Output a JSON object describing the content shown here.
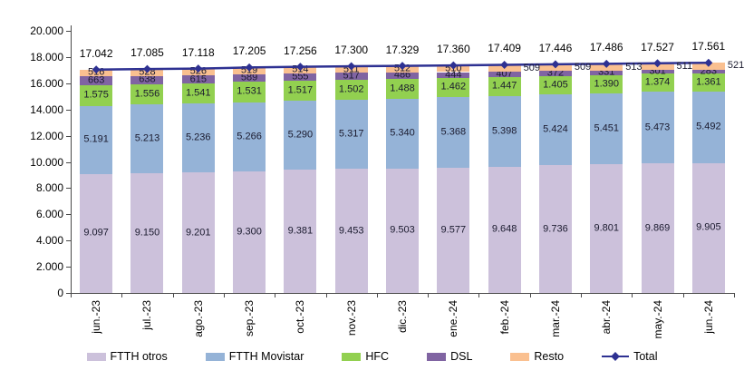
{
  "chart_data": {
    "type": "bar",
    "stacked": true,
    "title": "",
    "xlabel": "",
    "ylabel": "",
    "categories": [
      "jun.-23",
      "jul.-23",
      "ago.-23",
      "sep.-23",
      "oct.-23",
      "nov.-23",
      "dic.-23",
      "ene.-24",
      "feb.-24",
      "mar.-24",
      "abr.-24",
      "may.-24",
      "jun.-24"
    ],
    "series": [
      {
        "name": "FTTH otros",
        "color": "#CCC1DB",
        "values": [
          9097,
          9150,
          9201,
          9300,
          9381,
          9453,
          9503,
          9577,
          9648,
          9736,
          9801,
          9869,
          9905
        ]
      },
      {
        "name": "FTTH Movistar",
        "color": "#95B3D7",
        "values": [
          5191,
          5213,
          5236,
          5266,
          5290,
          5317,
          5340,
          5368,
          5398,
          5424,
          5451,
          5473,
          5492
        ]
      },
      {
        "name": "HFC",
        "color": "#92D050",
        "values": [
          1575,
          1556,
          1541,
          1531,
          1517,
          1502,
          1488,
          1462,
          1447,
          1405,
          1390,
          1374,
          1361
        ]
      },
      {
        "name": "DSL",
        "color": "#8064A2",
        "values": [
          663,
          638,
          615,
          589,
          555,
          517,
          486,
          444,
          407,
          372,
          331,
          301,
          283
        ]
      },
      {
        "name": "Resto",
        "color": "#FAC090",
        "values": [
          516,
          528,
          526,
          519,
          514,
          511,
          512,
          510,
          509,
          509,
          513,
          511,
          521
        ],
        "label_placement": [
          "in",
          "in",
          "in",
          "in",
          "in",
          "in",
          "in",
          "in",
          "out",
          "out",
          "out",
          "out",
          "out"
        ]
      }
    ],
    "total": {
      "name": "Total",
      "color": "#2E3192",
      "values": [
        17042,
        17085,
        17118,
        17205,
        17256,
        17300,
        17329,
        17360,
        17409,
        17446,
        17486,
        17527,
        17561
      ]
    },
    "ylim": [
      0,
      20000
    ],
    "ytick_step": 2000,
    "ytick_labels": [
      "0",
      "2.000",
      "4.000",
      "6.000",
      "8.000",
      "10.000",
      "12.000",
      "14.000",
      "16.000",
      "18.000",
      "20.000"
    ],
    "number_format": "thousands-dot",
    "grid": false,
    "legend_position": "bottom",
    "label_color": "#1b1b2f",
    "axis_color": "#4a4a4a"
  }
}
